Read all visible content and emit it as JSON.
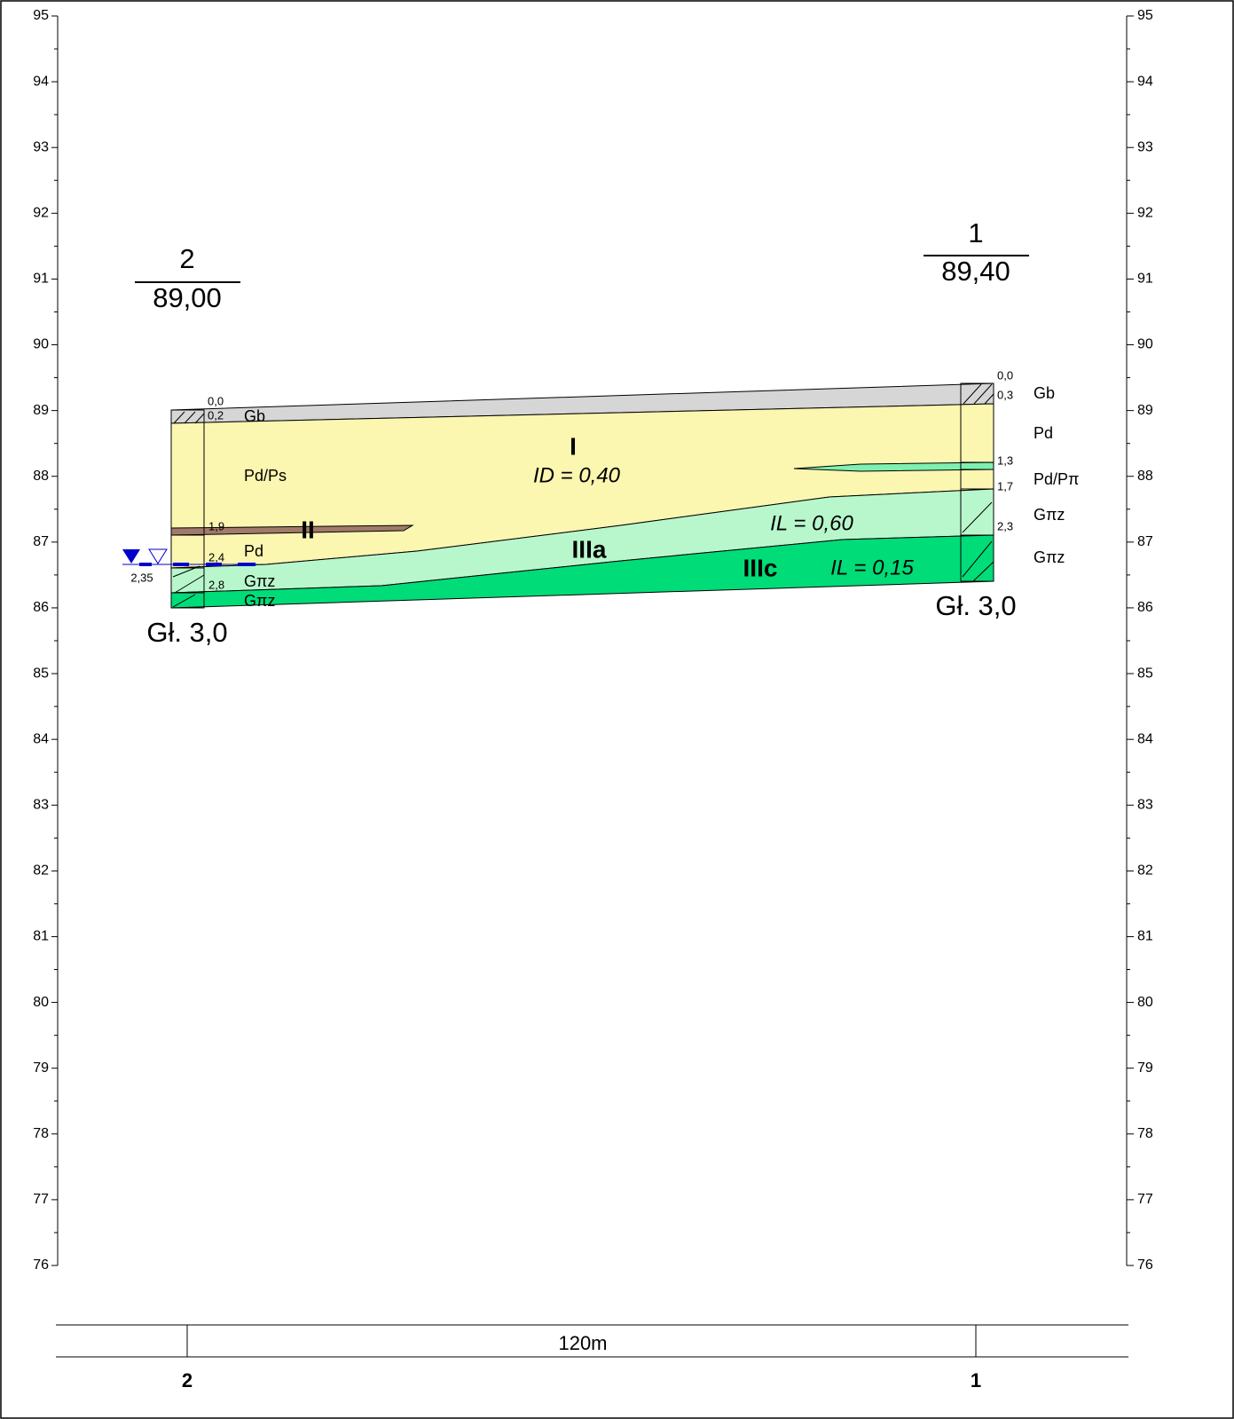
{
  "axis": {
    "elevations": [
      95,
      94,
      93,
      92,
      91,
      90,
      89,
      88,
      87,
      86,
      85,
      84,
      83,
      82,
      81,
      80,
      79,
      78,
      77,
      76
    ]
  },
  "boreholes": [
    {
      "number": "2",
      "elevation": "89,00",
      "depths": [
        "0,0",
        "0,2",
        "1,9",
        "2,4",
        "2,8"
      ],
      "soils": [
        "Gb",
        "Pd/Ps",
        "Pd",
        "Gπz",
        "Gπz"
      ],
      "water": "2,35",
      "final_depth": "Gł. 3,0"
    },
    {
      "number": "1",
      "elevation": "89,40",
      "depths": [
        "0,0",
        "0,3",
        "1,3",
        "1,7",
        "2,3"
      ],
      "soils": [
        "Gb",
        "Pd",
        "Pd/Pπ",
        "Gπz",
        "Gπz"
      ],
      "final_depth": "Gł. 3,0"
    }
  ],
  "layers": [
    {
      "label": "I",
      "parameter": "ID = 0,40"
    },
    {
      "label": "II"
    },
    {
      "label": "IIIa",
      "parameter": "IL = 0,60"
    },
    {
      "label": "IIIc",
      "parameter": "IL = 0,15"
    }
  ],
  "distance": "120m"
}
